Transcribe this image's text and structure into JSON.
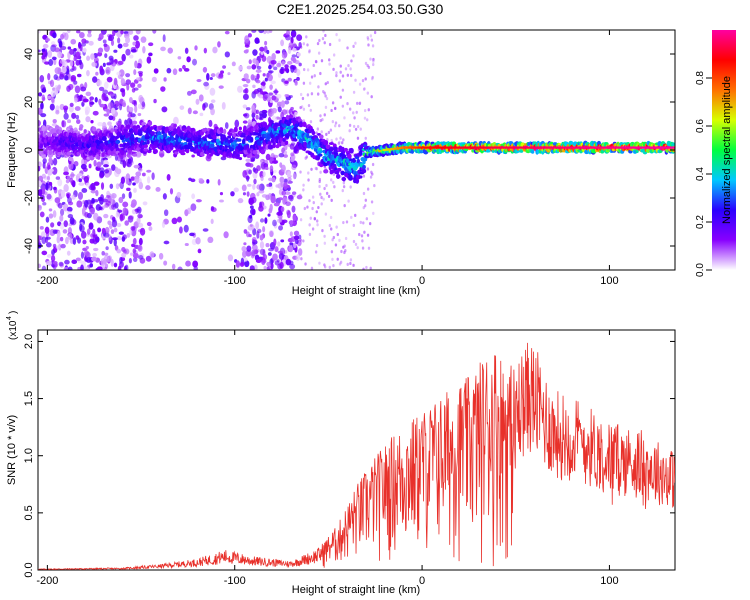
{
  "title": "C2E1.2025.254.03.50.G30",
  "chart_data": [
    {
      "type": "heatmap",
      "xlabel": "Height of straight line (km)",
      "ylabel": "Frequency (Hz)",
      "xlim": [
        -205,
        135
      ],
      "ylim": [
        -50,
        50
      ],
      "x_ticks": [
        -200,
        -100,
        0,
        100
      ],
      "x_tick_labels": [
        "-200",
        "-100",
        "0",
        "100"
      ],
      "y_ticks": [
        -40,
        -20,
        0,
        20,
        40
      ],
      "y_tick_labels": [
        "-40",
        "-20",
        "0",
        "20",
        "40"
      ],
      "colorbar": {
        "label": "Normalized spectral amplitude",
        "range": [
          0,
          1
        ],
        "ticks": [
          0.0,
          0.2,
          0.4,
          0.6,
          0.8
        ],
        "tick_labels": [
          "0.0",
          "0.2",
          "0.4",
          "0.6",
          "0.8"
        ],
        "colors": [
          "#ffffff",
          "#8800ff",
          "#2a00ff",
          "#00c8ff",
          "#00ff40",
          "#d8ff00",
          "#ff7000",
          "#ff0000",
          "#ff00a0"
        ]
      },
      "ridge": [
        {
          "x": -200,
          "f": 3,
          "amp": 0.15
        },
        {
          "x": -190,
          "f": 3,
          "amp": 0.2
        },
        {
          "x": -180,
          "f": 2,
          "amp": 0.2
        },
        {
          "x": -170,
          "f": 3,
          "amp": 0.22
        },
        {
          "x": -160,
          "f": 4,
          "amp": 0.25
        },
        {
          "x": -150,
          "f": 5,
          "amp": 0.28
        },
        {
          "x": -140,
          "f": 5,
          "amp": 0.3
        },
        {
          "x": -130,
          "f": 4,
          "amp": 0.3
        },
        {
          "x": -120,
          "f": 3,
          "amp": 0.3
        },
        {
          "x": -110,
          "f": 3,
          "amp": 0.3
        },
        {
          "x": -100,
          "f": 2,
          "amp": 0.3
        },
        {
          "x": -90,
          "f": 4,
          "amp": 0.3
        },
        {
          "x": -80,
          "f": 7,
          "amp": 0.32
        },
        {
          "x": -70,
          "f": 9,
          "amp": 0.35
        },
        {
          "x": -60,
          "f": 4,
          "amp": 0.35
        },
        {
          "x": -50,
          "f": -3,
          "amp": 0.35
        },
        {
          "x": -40,
          "f": -6,
          "amp": 0.38
        },
        {
          "x": -35,
          "f": -8,
          "amp": 0.4
        },
        {
          "x": -30,
          "f": -1,
          "amp": 0.5
        },
        {
          "x": -20,
          "f": 0,
          "amp": 0.6
        },
        {
          "x": -10,
          "f": 1,
          "amp": 0.7
        },
        {
          "x": 0,
          "f": 1,
          "amp": 0.8
        },
        {
          "x": 20,
          "f": 1,
          "amp": 0.85
        },
        {
          "x": 40,
          "f": 1,
          "amp": 0.88
        },
        {
          "x": 60,
          "f": 1,
          "amp": 0.9
        },
        {
          "x": 80,
          "f": 1,
          "amp": 0.92
        },
        {
          "x": 100,
          "f": 1,
          "amp": 0.93
        },
        {
          "x": 120,
          "f": 1,
          "amp": 0.95
        },
        {
          "x": 135,
          "f": 1,
          "amp": 0.95
        }
      ]
    },
    {
      "type": "line",
      "xlabel": "Height of straight line (km)",
      "ylabel": "SNR (10 * v/v)",
      "y_scale_label": "(x10",
      "y_scale_exponent": "4",
      "xlim": [
        -205,
        135
      ],
      "ylim": [
        0,
        2.1
      ],
      "x_ticks": [
        -200,
        -100,
        0,
        100
      ],
      "x_tick_labels": [
        "-200",
        "-100",
        "0",
        "100"
      ],
      "y_ticks": [
        0,
        0.5,
        1.0,
        1.5,
        2.0
      ],
      "y_tick_labels": [
        "0.0",
        "0.5",
        "1.0",
        "1.5",
        "2.0"
      ],
      "color": "#e8302a",
      "envelope": [
        {
          "x": -205,
          "y": 0.01
        },
        {
          "x": -160,
          "y": 0.02
        },
        {
          "x": -140,
          "y": 0.05
        },
        {
          "x": -120,
          "y": 0.1
        },
        {
          "x": -105,
          "y": 0.18
        },
        {
          "x": -90,
          "y": 0.12
        },
        {
          "x": -70,
          "y": 0.08
        },
        {
          "x": -55,
          "y": 0.2
        },
        {
          "x": -45,
          "y": 0.4
        },
        {
          "x": -35,
          "y": 0.75
        },
        {
          "x": -25,
          "y": 1.0
        },
        {
          "x": -15,
          "y": 1.2
        },
        {
          "x": 0,
          "y": 1.4
        },
        {
          "x": 15,
          "y": 1.6
        },
        {
          "x": 25,
          "y": 1.7
        },
        {
          "x": 38,
          "y": 2.0
        },
        {
          "x": 48,
          "y": 1.8
        },
        {
          "x": 58,
          "y": 2.05
        },
        {
          "x": 70,
          "y": 1.6
        },
        {
          "x": 85,
          "y": 1.5
        },
        {
          "x": 100,
          "y": 1.3
        },
        {
          "x": 115,
          "y": 1.25
        },
        {
          "x": 125,
          "y": 1.15
        },
        {
          "x": 135,
          "y": 1.05
        }
      ]
    }
  ]
}
